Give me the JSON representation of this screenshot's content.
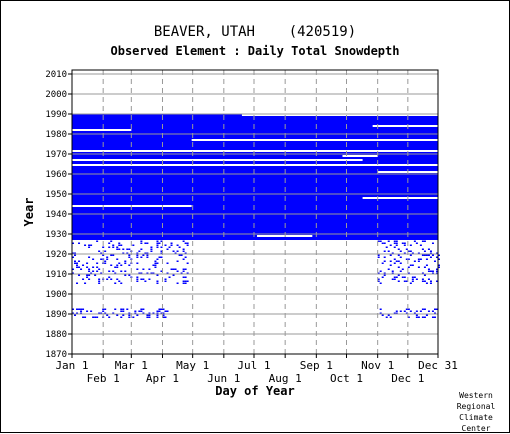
{
  "chart_data": {
    "type": "heatmap",
    "title": "BEAVER, UTAH    (420519)",
    "subtitle": "Observed Element : Daily Total Snowdepth",
    "xlabel": "Day of Year",
    "ylabel": "Year",
    "xlim": [
      1,
      365
    ],
    "ylim": [
      1870,
      2012
    ],
    "grid": true,
    "x_ticks_top_row": [
      {
        "label": "Jan 1",
        "day": 1
      },
      {
        "label": "Mar 1",
        "day": 60
      },
      {
        "label": "May 1",
        "day": 121
      },
      {
        "label": "Jul 1",
        "day": 182
      },
      {
        "label": "Sep 1",
        "day": 244
      },
      {
        "label": "Nov 1",
        "day": 305
      },
      {
        "label": "Dec 31",
        "day": 365
      }
    ],
    "x_ticks_bottom_row": [
      {
        "label": "Feb 1",
        "day": 32
      },
      {
        "label": "Apr 1",
        "day": 91
      },
      {
        "label": "Jun 1",
        "day": 152
      },
      {
        "label": "Aug 1",
        "day": 213
      },
      {
        "label": "Oct 1",
        "day": 274
      },
      {
        "label": "Dec 1",
        "day": 335
      }
    ],
    "y_ticks": [
      1870,
      1880,
      1890,
      1900,
      1910,
      1920,
      1930,
      1940,
      1950,
      1960,
      1970,
      1980,
      1990,
      2000,
      2010
    ],
    "fill_color": "#0000ff",
    "solid_blocks": [
      {
        "day_start": 1,
        "day_end": 365,
        "year_start": 1927,
        "year_end": 1963
      },
      {
        "day_start": 1,
        "day_end": 365,
        "year_start": 1965,
        "year_end": 1989
      }
    ],
    "gap_lines": [
      {
        "day_start": 1,
        "day_end": 365,
        "year": 1964.5
      },
      {
        "day_start": 1,
        "day_end": 60,
        "year": 1982
      },
      {
        "day_start": 300,
        "day_end": 365,
        "year": 1984
      },
      {
        "day_start": 1,
        "day_end": 365,
        "year": 1971.5
      },
      {
        "day_start": 1,
        "day_end": 290,
        "year": 1967
      },
      {
        "day_start": 120,
        "day_end": 365,
        "year": 1977
      },
      {
        "day_start": 170,
        "day_end": 365,
        "year": 1989.5
      },
      {
        "day_start": 270,
        "day_end": 305,
        "year": 1969
      },
      {
        "day_start": 305,
        "day_end": 365,
        "year": 1961
      },
      {
        "day_start": 1,
        "day_end": 120,
        "year": 1944
      },
      {
        "day_start": 290,
        "day_end": 365,
        "year": 1948
      },
      {
        "day_start": 185,
        "day_end": 240,
        "year": 1929
      }
    ],
    "sparse_bands": [
      {
        "year_start": 1905,
        "year_end": 1926,
        "day_start": 1,
        "day_end": 115,
        "density": 0.14
      },
      {
        "year_start": 1905,
        "year_end": 1926,
        "day_start": 305,
        "day_end": 365,
        "density": 0.16
      },
      {
        "year_start": 1888,
        "year_end": 1892,
        "day_start": 1,
        "day_end": 95,
        "density": 0.3
      },
      {
        "year_start": 1888,
        "year_end": 1892,
        "day_start": 305,
        "day_end": 365,
        "density": 0.2
      }
    ]
  }
}
